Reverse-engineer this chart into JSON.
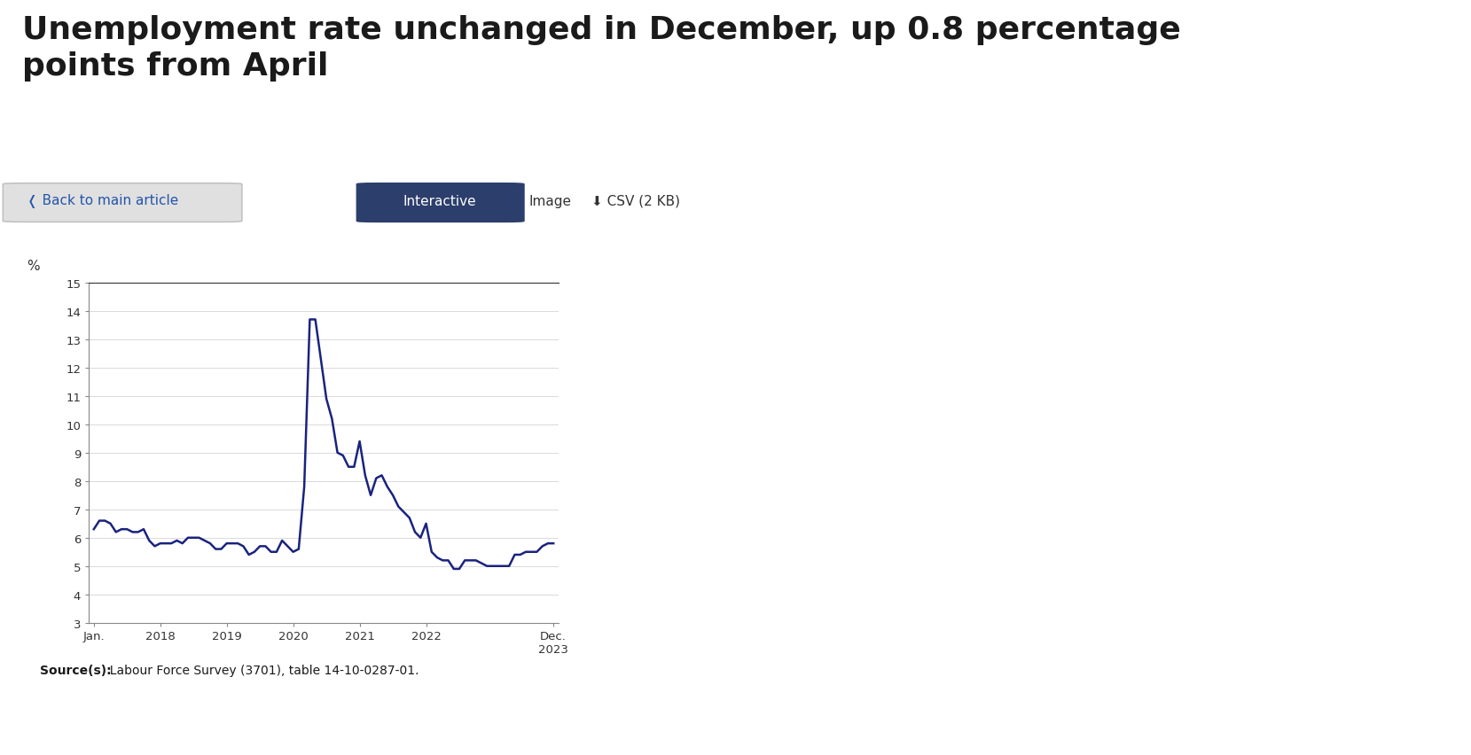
{
  "title": "Unemployment rate unchanged in December, up 0.8 percentage\npoints from April",
  "ylabel": "%",
  "line_color": "#1a237e",
  "panel_bg": "#e8e8e8",
  "plot_bg": "#ffffff",
  "fig_bg": "#ffffff",
  "red_line_color": "#c0392b",
  "ylim": [
    3,
    15
  ],
  "yticks": [
    3,
    4,
    5,
    6,
    7,
    8,
    9,
    10,
    11,
    12,
    13,
    14,
    15
  ],
  "values": [
    6.3,
    6.6,
    6.6,
    6.5,
    6.2,
    6.3,
    6.3,
    6.2,
    6.2,
    6.3,
    5.9,
    5.7,
    5.8,
    5.8,
    5.8,
    5.9,
    5.8,
    6.0,
    6.0,
    6.0,
    5.9,
    5.8,
    5.6,
    5.6,
    5.8,
    5.8,
    5.8,
    5.7,
    5.4,
    5.5,
    5.7,
    5.7,
    5.5,
    5.5,
    5.9,
    5.7,
    5.5,
    5.6,
    7.8,
    13.7,
    13.7,
    12.3,
    10.9,
    10.2,
    9.0,
    8.9,
    8.5,
    8.5,
    9.4,
    8.2,
    7.5,
    8.1,
    8.2,
    7.8,
    7.5,
    7.1,
    6.9,
    6.7,
    6.2,
    6.0,
    6.5,
    5.5,
    5.3,
    5.2,
    5.2,
    4.9,
    4.9,
    5.2,
    5.2,
    5.2,
    5.1,
    5.0,
    5.0,
    5.0,
    5.0,
    5.0,
    5.4,
    5.4,
    5.5,
    5.5,
    5.5,
    5.7,
    5.8,
    5.8
  ],
  "xtick_pos": [
    0,
    12,
    24,
    36,
    48,
    60,
    83
  ],
  "xtick_labels": [
    "Jan.",
    "2018",
    "2019",
    "2020",
    "2021",
    "2022",
    "Dec.\n2023"
  ],
  "xlim": [
    -1,
    84
  ],
  "source_bold": "Source(s):",
  "source_normal": "  Labour Force Survey (3701), table 14-10-0287-01.",
  "nav_btn_text": "❬ Back to main article",
  "interactive_btn": "Interactive",
  "image_btn": "Image",
  "csv_btn": "⬇ CSV (2 KB)",
  "title_fontsize": 26,
  "tick_fontsize": 9.5,
  "source_fontsize": 10,
  "nav_fontsize": 11
}
